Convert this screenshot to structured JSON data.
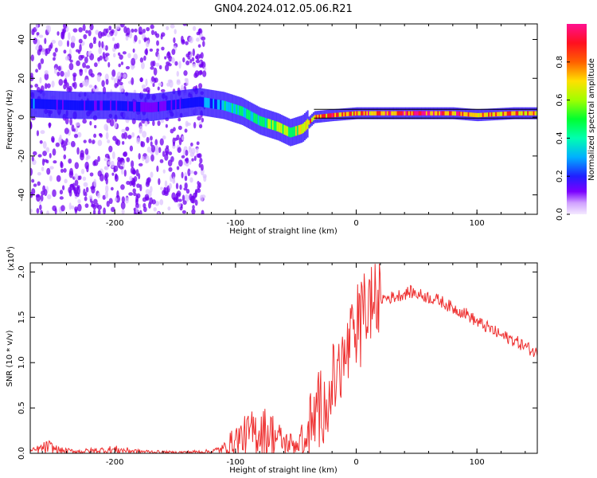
{
  "title": "GN04.2024.012.05.06.R21",
  "chart_data": [
    {
      "type": "heatmap",
      "xlabel": "Height of straight line (km)",
      "ylabel": "Frequency (Hz)",
      "xlim": [
        -270,
        150
      ],
      "ylim": [
        -50,
        48
      ],
      "xticks": [
        -200,
        -100,
        0,
        100
      ],
      "xtick_labels": [
        "-200",
        "-100",
        "0",
        "100"
      ],
      "yticks": [
        -40,
        -20,
        0,
        20,
        40
      ],
      "ytick_labels": [
        "-40",
        "-20",
        "0",
        "20",
        "40"
      ],
      "colorbar": {
        "label": "Normalized spectral amplitude",
        "range": [
          0.0,
          1.0
        ],
        "ticks": [
          0.0,
          0.2,
          0.4,
          0.6,
          0.8
        ],
        "tick_labels": [
          "0.0",
          "0.2",
          "0.4",
          "0.6",
          "0.8"
        ],
        "colors": [
          "#f4eaff",
          "#d8b0ff",
          "#7a00ff",
          "#1010ff",
          "#00c0ff",
          "#00ff60",
          "#c8ff00",
          "#ffd000",
          "#ff2020",
          "#ff1090"
        ]
      },
      "ridge": {
        "height_km": [
          -270,
          -230,
          -200,
          -170,
          -130,
          -110,
          -95,
          -80,
          -65,
          -55,
          -45,
          -35,
          -20,
          0,
          20,
          50,
          80,
          100,
          130,
          150
        ],
        "frequency_hz": [
          7,
          6,
          6,
          5,
          8,
          6,
          3,
          -2,
          -5,
          -8,
          -6,
          0,
          1,
          2,
          2,
          2,
          2,
          1,
          2,
          2
        ],
        "amplitude": [
          0.35,
          0.3,
          0.3,
          0.25,
          0.35,
          0.45,
          0.5,
          0.55,
          0.6,
          0.65,
          0.7,
          0.8,
          0.85,
          0.8,
          0.85,
          0.9,
          0.85,
          0.8,
          0.8,
          0.75
        ]
      },
      "scatter_region": {
        "x_range": [
          -270,
          -125
        ],
        "amplitude": 0.2
      }
    },
    {
      "type": "line",
      "xlabel": "Height of straight line (km)",
      "ylabel": "SNR (10 * v/v)",
      "y_scale_label": "(x10",
      "y_scale_exponent": "4",
      "y_scale_suffix": ")",
      "xlim": [
        -270,
        150
      ],
      "ylim": [
        0.0,
        2.1
      ],
      "xticks": [
        -200,
        -100,
        0,
        100
      ],
      "xtick_labels": [
        "-200",
        "-100",
        "0",
        "100"
      ],
      "yticks": [
        0.0,
        0.5,
        1.0,
        1.5,
        2.0
      ],
      "ytick_labels": [
        "0.0",
        "0.5",
        "1.0",
        "1.5",
        "2.0"
      ],
      "color": "#ee3030",
      "x": [
        -270,
        -255,
        -245,
        -230,
        -200,
        -180,
        -150,
        -120,
        -110,
        -100,
        -90,
        -80,
        -70,
        -60,
        -50,
        -40,
        -30,
        -20,
        -10,
        0,
        8,
        15,
        30,
        45,
        60,
        70,
        80,
        90,
        100,
        110,
        120,
        130,
        140,
        150
      ],
      "y": [
        0.02,
        0.07,
        0.03,
        0.02,
        0.04,
        0.02,
        0.01,
        0.02,
        0.05,
        0.15,
        0.2,
        0.25,
        0.22,
        0.12,
        0.1,
        0.2,
        0.5,
        0.75,
        1.0,
        1.4,
        1.6,
        1.7,
        1.72,
        1.78,
        1.72,
        1.68,
        1.6,
        1.55,
        1.45,
        1.38,
        1.3,
        1.25,
        1.18,
        1.1
      ]
    }
  ]
}
